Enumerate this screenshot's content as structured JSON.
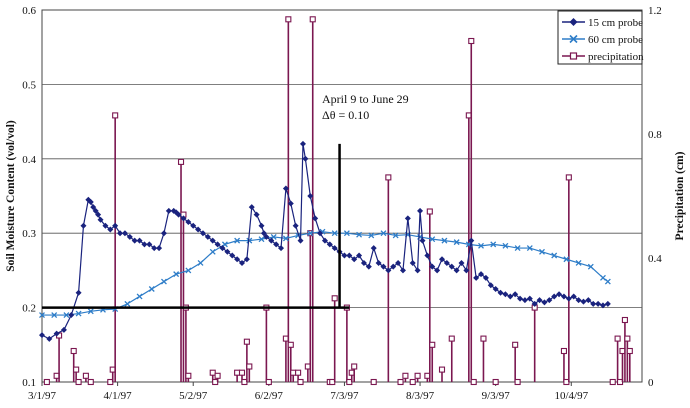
{
  "chart_data": {
    "type": "line",
    "ylabel": "Soil Moisture Content (vol/vol)",
    "y2label": "Precipitation (cm)",
    "ylim": [
      0.1,
      0.6
    ],
    "y2lim": [
      0,
      1.2
    ],
    "y_ticks": [
      "0.1",
      "0.2",
      "0.3",
      "0.4",
      "0.5",
      "0.6"
    ],
    "y2_ticks": [
      "0",
      "0.4",
      "0.8",
      "1.2"
    ],
    "x_ticks": [
      "3/1/97",
      "4/1/97",
      "5/2/97",
      "6/2/97",
      "7/3/97",
      "8/3/97",
      "9/3/97",
      "10/4/97"
    ],
    "x_tick_days": [
      0,
      31,
      62,
      93,
      124,
      155,
      186,
      217
    ],
    "xlim_days": [
      0,
      246
    ],
    "grid": "horizontal",
    "legend_position": "top-right",
    "colors": {
      "probe15": "#1a237e",
      "probe60": "#2e7dc8",
      "precip": "#7b1750",
      "annot": "#000000"
    },
    "series": [
      {
        "name": "15 cm probe",
        "axis": "left",
        "marker": "diamond",
        "x": [
          0,
          3,
          6,
          9,
          12,
          15,
          17,
          19,
          20,
          21,
          22,
          23,
          24,
          26,
          28,
          30,
          32,
          34,
          36,
          38,
          40,
          42,
          44,
          46,
          48,
          50,
          52,
          54,
          55,
          56,
          58,
          60,
          62,
          64,
          66,
          68,
          70,
          72,
          74,
          76,
          78,
          80,
          82,
          84,
          86,
          88,
          90,
          91,
          92,
          94,
          96,
          98,
          100,
          102,
          104,
          106,
          107,
          108,
          110,
          112,
          114,
          116,
          118,
          120,
          122,
          124,
          126,
          128,
          130,
          132,
          134,
          136,
          138,
          140,
          142,
          144,
          146,
          148,
          150,
          152,
          154,
          155,
          156,
          158,
          160,
          162,
          164,
          166,
          168,
          170,
          172,
          174,
          176,
          178,
          180,
          182,
          184,
          186,
          188,
          190,
          192,
          194,
          196,
          198,
          200,
          202,
          204,
          206,
          208,
          210,
          212,
          214,
          216,
          218,
          220,
          222,
          224,
          226,
          228,
          230,
          232
        ],
        "y": [
          0.163,
          0.158,
          0.165,
          0.17,
          0.19,
          0.22,
          0.31,
          0.345,
          0.342,
          0.335,
          0.33,
          0.325,
          0.318,
          0.31,
          0.305,
          0.31,
          0.3,
          0.3,
          0.295,
          0.29,
          0.29,
          0.285,
          0.285,
          0.28,
          0.28,
          0.3,
          0.33,
          0.33,
          0.328,
          0.325,
          0.32,
          0.315,
          0.31,
          0.305,
          0.3,
          0.295,
          0.29,
          0.285,
          0.28,
          0.275,
          0.27,
          0.265,
          0.26,
          0.265,
          0.335,
          0.325,
          0.31,
          0.3,
          0.295,
          0.29,
          0.285,
          0.28,
          0.36,
          0.34,
          0.31,
          0.29,
          0.42,
          0.4,
          0.35,
          0.32,
          0.3,
          0.29,
          0.285,
          0.28,
          0.275,
          0.27,
          0.27,
          0.265,
          0.27,
          0.26,
          0.255,
          0.28,
          0.26,
          0.255,
          0.25,
          0.255,
          0.26,
          0.25,
          0.32,
          0.26,
          0.25,
          0.33,
          0.29,
          0.27,
          0.255,
          0.25,
          0.265,
          0.26,
          0.255,
          0.25,
          0.26,
          0.25,
          0.29,
          0.24,
          0.245,
          0.24,
          0.23,
          0.225,
          0.22,
          0.218,
          0.215,
          0.218,
          0.212,
          0.21,
          0.212,
          0.205,
          0.21,
          0.207,
          0.21,
          0.215,
          0.218,
          0.215,
          0.212,
          0.215,
          0.21,
          0.208,
          0.21,
          0.205,
          0.205,
          0.203,
          0.205
        ]
      },
      {
        "name": "60 cm probe",
        "axis": "left",
        "marker": "x",
        "x": [
          0,
          5,
          10,
          15,
          20,
          25,
          30,
          35,
          40,
          45,
          50,
          55,
          60,
          65,
          70,
          75,
          80,
          85,
          90,
          95,
          100,
          105,
          110,
          115,
          120,
          125,
          130,
          135,
          140,
          145,
          150,
          155,
          160,
          165,
          170,
          175,
          180,
          185,
          190,
          195,
          200,
          205,
          210,
          215,
          220,
          225,
          230,
          232
        ],
        "y": [
          0.19,
          0.19,
          0.19,
          0.192,
          0.195,
          0.197,
          0.198,
          0.205,
          0.215,
          0.225,
          0.235,
          0.245,
          0.25,
          0.26,
          0.275,
          0.285,
          0.29,
          0.29,
          0.292,
          0.295,
          0.293,
          0.297,
          0.3,
          0.302,
          0.3,
          0.3,
          0.298,
          0.297,
          0.3,
          0.297,
          0.298,
          0.295,
          0.292,
          0.29,
          0.288,
          0.285,
          0.283,
          0.285,
          0.283,
          0.28,
          0.28,
          0.275,
          0.27,
          0.265,
          0.26,
          0.255,
          0.24,
          0.235
        ]
      },
      {
        "name": "precipitation",
        "axis": "right",
        "marker": "square",
        "x": [
          2,
          6,
          7,
          13,
          14,
          15,
          18,
          20,
          28,
          29,
          30,
          57,
          58,
          59,
          60,
          70,
          71,
          72,
          80,
          82,
          83,
          84,
          85,
          92,
          93,
          100,
          101,
          102,
          103,
          105,
          106,
          109,
          110,
          111,
          118,
          119,
          120,
          125,
          126,
          127,
          128,
          136,
          142,
          147,
          149,
          152,
          154,
          158,
          159,
          160,
          164,
          168,
          175,
          176,
          177,
          181,
          186,
          194,
          195,
          202,
          214,
          215,
          216,
          234,
          236,
          237,
          238,
          239,
          240,
          241
        ],
        "y": [
          0.0,
          0.02,
          0.15,
          0.1,
          0.04,
          0.0,
          0.02,
          0.0,
          0.0,
          0.04,
          0.86,
          0.71,
          0.54,
          0.24,
          0.02,
          0.03,
          0.0,
          0.02,
          0.03,
          0.03,
          0.0,
          0.13,
          0.05,
          0.24,
          0.0,
          0.14,
          1.17,
          0.12,
          0.03,
          0.03,
          0.0,
          0.05,
          0.48,
          1.17,
          0.0,
          0.0,
          0.27,
          0.24,
          0.0,
          0.03,
          0.05,
          0.0,
          0.66,
          0.0,
          0.02,
          0.0,
          0.02,
          0.02,
          0.55,
          0.12,
          0.04,
          0.14,
          0.86,
          1.1,
          0.0,
          0.14,
          0.0,
          0.12,
          0.0,
          0.24,
          0.1,
          0.0,
          0.66,
          0.0,
          0.14,
          0.0,
          0.1,
          0.2,
          0.14,
          0.1
        ]
      }
    ],
    "annotation": {
      "line1": "April 9 to June 29",
      "line2": "Δθ = 0.10",
      "hline": {
        "x_days": [
          0,
          126
        ],
        "y": 0.2
      },
      "vline": {
        "x_days": 122,
        "y": [
          0.2,
          0.42
        ]
      }
    }
  }
}
